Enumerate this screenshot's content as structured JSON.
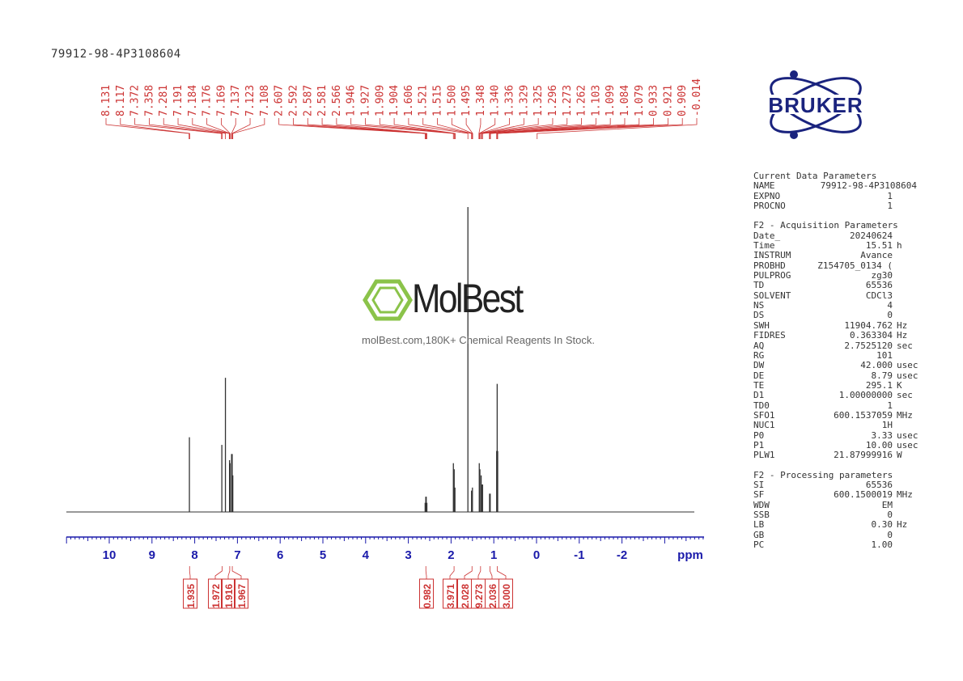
{
  "sample_name": "79912-98-4P3108604",
  "colors": {
    "peak_labels": "#cc3333",
    "axis": "#1a1aaa",
    "spectrum": "#333333",
    "logo": "#1a237e",
    "watermark_green": "#8bc34a"
  },
  "watermark": {
    "brand": "MolBest",
    "tagline": "molBest.com,180K+ Chemical Reagents In Stock."
  },
  "logo": {
    "text": "BRUKER"
  },
  "chart_data": {
    "type": "line",
    "title": "",
    "xlabel": "ppm",
    "xlim": [
      12.0,
      -3.5
    ],
    "x_reversed": true,
    "x_ticks": [
      "10",
      "9",
      "8",
      "7",
      "6",
      "5",
      "4",
      "3",
      "2",
      "1",
      "0",
      "-1",
      "-2"
    ],
    "peak_labels": [
      "8.131",
      "8.117",
      "7.372",
      "7.358",
      "7.281",
      "7.191",
      "7.184",
      "7.176",
      "7.169",
      "7.137",
      "7.123",
      "7.108",
      "2.607",
      "2.592",
      "2.587",
      "2.581",
      "2.566",
      "1.946",
      "1.927",
      "1.909",
      "1.904",
      "1.606",
      "1.521",
      "1.515",
      "1.500",
      "1.495",
      "1.348",
      "1.340",
      "1.336",
      "1.329",
      "1.325",
      "1.296",
      "1.273",
      "1.262",
      "1.103",
      "1.099",
      "1.084",
      "1.079",
      "0.933",
      "0.921",
      "0.909",
      "-0.014"
    ],
    "peaks": [
      {
        "ppm": 8.124,
        "height": 0.245
      },
      {
        "ppm": 7.365,
        "height": 0.22
      },
      {
        "ppm": 7.281,
        "height": 0.44
      },
      {
        "ppm": 7.185,
        "height": 0.17
      },
      {
        "ppm": 7.172,
        "height": 0.16
      },
      {
        "ppm": 7.137,
        "height": 0.19
      },
      {
        "ppm": 7.123,
        "height": 0.19
      },
      {
        "ppm": 7.108,
        "height": 0.12
      },
      {
        "ppm": 2.607,
        "height": 0.03
      },
      {
        "ppm": 2.592,
        "height": 0.05
      },
      {
        "ppm": 2.581,
        "height": 0.05
      },
      {
        "ppm": 2.566,
        "height": 0.03
      },
      {
        "ppm": 1.946,
        "height": 0.16
      },
      {
        "ppm": 1.927,
        "height": 0.14
      },
      {
        "ppm": 1.909,
        "height": 0.08
      },
      {
        "ppm": 1.606,
        "height": 1.0
      },
      {
        "ppm": 1.521,
        "height": 0.07
      },
      {
        "ppm": 1.5,
        "height": 0.08
      },
      {
        "ppm": 1.34,
        "height": 0.16
      },
      {
        "ppm": 1.325,
        "height": 0.14
      },
      {
        "ppm": 1.296,
        "height": 0.12
      },
      {
        "ppm": 1.273,
        "height": 0.09
      },
      {
        "ppm": 1.262,
        "height": 0.09
      },
      {
        "ppm": 1.099,
        "height": 0.06
      },
      {
        "ppm": 1.084,
        "height": 0.06
      },
      {
        "ppm": 0.933,
        "height": 0.2
      },
      {
        "ppm": 0.921,
        "height": 0.42
      },
      {
        "ppm": 0.909,
        "height": 0.2
      },
      {
        "ppm": -0.014,
        "height": 0.0
      }
    ],
    "integrals": [
      {
        "ppm": 8.12,
        "value": "1.935"
      },
      {
        "ppm": 7.36,
        "value": "1.972"
      },
      {
        "ppm": 7.18,
        "value": "1.916"
      },
      {
        "ppm": 7.12,
        "value": "1.967"
      },
      {
        "ppm": 2.59,
        "value": "0.982"
      },
      {
        "ppm": 1.93,
        "value": "3.971"
      },
      {
        "ppm": 1.51,
        "value": "2.028"
      },
      {
        "ppm": 1.31,
        "value": "9.273"
      },
      {
        "ppm": 1.09,
        "value": "2.036"
      },
      {
        "ppm": 0.92,
        "value": "3.000"
      }
    ]
  },
  "params": {
    "sections": [
      {
        "title": "Current Data Parameters",
        "rows": [
          {
            "k": "NAME",
            "v": "79912-98-4P3108604",
            "u": "",
            "wide": true
          },
          {
            "k": "EXPNO",
            "v": "1",
            "u": ""
          },
          {
            "k": "PROCNO",
            "v": "1",
            "u": ""
          }
        ]
      },
      {
        "title": "F2 - Acquisition Parameters",
        "rows": [
          {
            "k": "Date_",
            "v": "20240624",
            "u": ""
          },
          {
            "k": "Time",
            "v": "15.51",
            "u": "h"
          },
          {
            "k": "INSTRUM",
            "v": "Avance",
            "u": ""
          },
          {
            "k": "PROBHD",
            "v": "Z154705_0134 (",
            "u": ""
          },
          {
            "k": "PULPROG",
            "v": "zg30",
            "u": ""
          },
          {
            "k": "TD",
            "v": "65536",
            "u": ""
          },
          {
            "k": "SOLVENT",
            "v": "CDCl3",
            "u": ""
          },
          {
            "k": "NS",
            "v": "4",
            "u": ""
          },
          {
            "k": "DS",
            "v": "0",
            "u": ""
          },
          {
            "k": "SWH",
            "v": "11904.762",
            "u": "Hz"
          },
          {
            "k": "FIDRES",
            "v": "0.363304",
            "u": "Hz"
          },
          {
            "k": "AQ",
            "v": "2.7525120",
            "u": "sec"
          },
          {
            "k": "RG",
            "v": "101",
            "u": ""
          },
          {
            "k": "DW",
            "v": "42.000",
            "u": "usec"
          },
          {
            "k": "DE",
            "v": "8.79",
            "u": "usec"
          },
          {
            "k": "TE",
            "v": "295.1",
            "u": "K"
          },
          {
            "k": "D1",
            "v": "1.00000000",
            "u": "sec"
          },
          {
            "k": "TD0",
            "v": "1",
            "u": ""
          },
          {
            "k": "SFO1",
            "v": "600.1537059",
            "u": "MHz"
          },
          {
            "k": "NUC1",
            "v": "1H",
            "u": ""
          },
          {
            "k": "P0",
            "v": "3.33",
            "u": "usec"
          },
          {
            "k": "P1",
            "v": "10.00",
            "u": "usec"
          },
          {
            "k": "PLW1",
            "v": "21.87999916",
            "u": "W"
          }
        ]
      },
      {
        "title": "F2 - Processing parameters",
        "rows": [
          {
            "k": "SI",
            "v": "65536",
            "u": ""
          },
          {
            "k": "SF",
            "v": "600.1500019",
            "u": "MHz"
          },
          {
            "k": "WDW",
            "v": "EM",
            "u": ""
          },
          {
            "k": "SSB",
            "v": "0",
            "u": ""
          },
          {
            "k": "LB",
            "v": "0.30",
            "u": "Hz"
          },
          {
            "k": "GB",
            "v": "0",
            "u": ""
          },
          {
            "k": "PC",
            "v": "1.00",
            "u": ""
          }
        ]
      }
    ]
  }
}
